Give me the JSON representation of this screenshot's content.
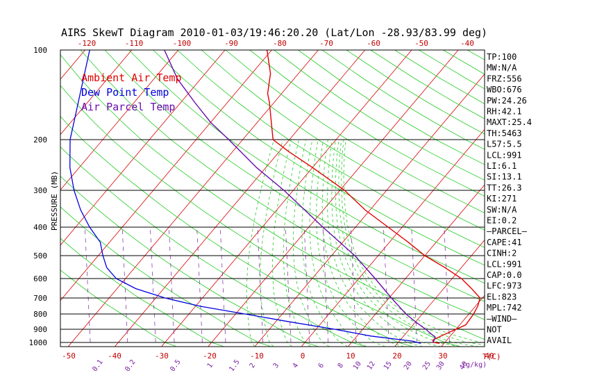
{
  "title": "AIRS SkewT Diagram 2010-01-03/19:46:20.20 (Lat/Lon -28.93/83.99 deg)",
  "legend": [
    {
      "label": "Ambient Air Temp",
      "color": "#e00000"
    },
    {
      "label": "Dew Point Temp",
      "color": "#0000e0"
    },
    {
      "label": "Air Parcel Temp",
      "color": "#6a0dad"
    }
  ],
  "axis": {
    "ylabel": "PRESSURE (MB)",
    "xlabel": "T(C)",
    "mix_unit": "g/kg"
  },
  "stats": [
    "TP:100",
    "MW:N/A",
    "FRZ:556",
    "WBO:676",
    "PW:24.26",
    "RH:42.1",
    "MAXT:25.4",
    "TH:5463",
    "L57:5.5",
    "LCL:991",
    "LI:6.1",
    "SI:13.1",
    "TT:26.3",
    "KI:271",
    "SW:N/A",
    "EI:0.2",
    "—PARCEL—",
    "CAPE:41",
    "CINH:2",
    "LCL:991",
    "CAP:0.0",
    "LFC:973",
    "EL:823",
    "MPL:742",
    "—WIND—",
    "NOT",
    "AVAIL"
  ],
  "chart_data": {
    "type": "line",
    "title": "AIRS SkewT Diagram 2010-01-03/19:46:20.20 (Lat/Lon -28.93/83.99 deg)",
    "ylabel": "PRESSURE (MB)",
    "xlabel": "T(C)",
    "y_scale": "log",
    "pressure_levels": [
      100,
      200,
      300,
      400,
      500,
      600,
      700,
      800,
      900,
      1000
    ],
    "top_temp_ticks": [
      -120,
      -110,
      -100,
      -90,
      -80,
      -70,
      -60,
      -50,
      -40
    ],
    "bottom_temp_ticks": [
      -50,
      -40,
      -30,
      -20,
      -10,
      0,
      10,
      20,
      30,
      40
    ],
    "mixing_ratio_ticks": [
      "0.1",
      "0.2",
      "0.5",
      "1",
      "1.5",
      "2",
      "3",
      "4",
      "6",
      "8",
      "10",
      "12",
      "15",
      "20",
      "25",
      "30",
      "40"
    ],
    "series": [
      {
        "name": "Ambient Air Temp",
        "color": "#e00000",
        "points": [
          [
            1010,
            19
          ],
          [
            1000,
            17.5
          ],
          [
            980,
            17
          ],
          [
            950,
            18
          ],
          [
            900,
            20
          ],
          [
            870,
            21.3
          ],
          [
            800,
            21
          ],
          [
            750,
            20.5
          ],
          [
            700,
            19.5
          ],
          [
            650,
            16
          ],
          [
            600,
            12
          ],
          [
            550,
            6.5
          ],
          [
            500,
            0
          ],
          [
            450,
            -6
          ],
          [
            400,
            -13
          ],
          [
            350,
            -21
          ],
          [
            300,
            -29
          ],
          [
            250,
            -40
          ],
          [
            220,
            -48
          ],
          [
            200,
            -53.5
          ],
          [
            175,
            -57
          ],
          [
            150,
            -61
          ],
          [
            140,
            -63
          ],
          [
            120,
            -66
          ],
          [
            100,
            -71
          ]
        ]
      },
      {
        "name": "Dew Point Temp",
        "color": "#0000e0",
        "points": [
          [
            1010,
            15
          ],
          [
            1000,
            14
          ],
          [
            990,
            13
          ],
          [
            950,
            3
          ],
          [
            900,
            -6
          ],
          [
            850,
            -17
          ],
          [
            800,
            -28
          ],
          [
            750,
            -39
          ],
          [
            700,
            -48
          ],
          [
            650,
            -56
          ],
          [
            600,
            -62
          ],
          [
            550,
            -66
          ],
          [
            500,
            -69
          ],
          [
            450,
            -72
          ],
          [
            400,
            -77
          ],
          [
            350,
            -82
          ],
          [
            300,
            -87
          ],
          [
            250,
            -92
          ],
          [
            200,
            -97
          ],
          [
            100,
            -109
          ]
        ]
      },
      {
        "name": "Air Parcel Temp",
        "color": "#6a0dad",
        "points": [
          [
            1000,
            17.5
          ],
          [
            960,
            17
          ],
          [
            900,
            13.5
          ],
          [
            850,
            10
          ],
          [
            800,
            6.5
          ],
          [
            700,
            0.5
          ],
          [
            600,
            -6.5
          ],
          [
            500,
            -15
          ],
          [
            400,
            -27
          ],
          [
            300,
            -42
          ],
          [
            250,
            -52
          ],
          [
            200,
            -63
          ],
          [
            175,
            -70
          ],
          [
            150,
            -77
          ],
          [
            125,
            -85
          ],
          [
            100,
            -93
          ]
        ]
      }
    ]
  }
}
